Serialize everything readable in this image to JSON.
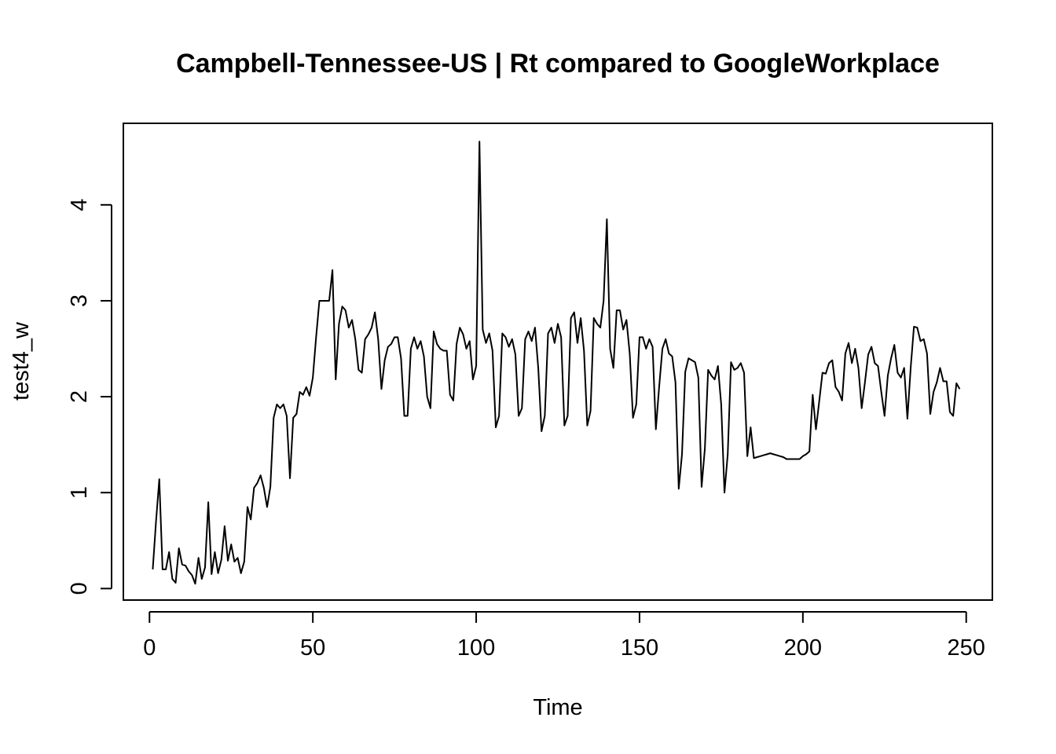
{
  "chart_data": {
    "type": "line",
    "title": "Campbell-Tennessee-US | Rt compared to GoogleWorkplace",
    "xlabel": "Time",
    "ylabel": "test4_w",
    "xlim": [
      -8,
      258
    ],
    "ylim": [
      -0.12,
      4.85
    ],
    "x_ticks": [
      "0",
      "50",
      "100",
      "150",
      "200",
      "250"
    ],
    "x_tick_values": [
      0,
      50,
      100,
      150,
      200,
      250
    ],
    "y_ticks": [
      "0",
      "1",
      "2",
      "3",
      "4"
    ],
    "y_tick_values": [
      0,
      1,
      2,
      3,
      4
    ],
    "grid": false,
    "legend": "none",
    "line_color": "#000000",
    "x_start": 1,
    "series": [
      {
        "values": [
          0.2,
          0.7,
          1.14,
          0.2,
          0.2,
          0.38,
          0.1,
          0.06,
          0.42,
          0.25,
          0.24,
          0.18,
          0.14,
          0.05,
          0.32,
          0.1,
          0.22,
          0.9,
          0.15,
          0.38,
          0.16,
          0.3,
          0.65,
          0.29,
          0.46,
          0.28,
          0.32,
          0.16,
          0.28,
          0.85,
          0.72,
          1.05,
          1.1,
          1.18,
          1.05,
          0.85,
          1.06,
          1.78,
          1.92,
          1.88,
          1.92,
          1.8,
          1.15,
          1.78,
          1.82,
          2.05,
          2.02,
          2.1,
          2.01,
          2.2,
          2.62,
          3.0,
          3.0,
          3.0,
          3.0,
          3.32,
          2.18,
          2.76,
          2.94,
          2.9,
          2.72,
          2.8,
          2.6,
          2.28,
          2.25,
          2.6,
          2.65,
          2.72,
          2.88,
          2.6,
          2.08,
          2.38,
          2.52,
          2.55,
          2.62,
          2.62,
          2.4,
          1.8,
          1.8,
          2.5,
          2.62,
          2.5,
          2.58,
          2.42,
          2.0,
          1.88,
          2.68,
          2.55,
          2.5,
          2.48,
          2.48,
          2.02,
          1.96,
          2.55,
          2.72,
          2.65,
          2.5,
          2.58,
          2.18,
          2.32,
          4.66,
          2.7,
          2.56,
          2.66,
          2.48,
          1.68,
          1.8,
          2.66,
          2.62,
          2.52,
          2.6,
          2.44,
          1.8,
          1.88,
          2.6,
          2.68,
          2.58,
          2.72,
          2.3,
          1.64,
          1.8,
          2.66,
          2.72,
          2.56,
          2.76,
          2.62,
          1.7,
          1.8,
          2.82,
          2.88,
          2.56,
          2.82,
          2.48,
          1.7,
          1.85,
          2.82,
          2.76,
          2.72,
          3.0,
          3.85,
          2.5,
          2.3,
          2.9,
          2.9,
          2.7,
          2.8,
          2.45,
          1.78,
          1.92,
          2.62,
          2.62,
          2.5,
          2.6,
          2.52,
          1.66,
          2.1,
          2.5,
          2.6,
          2.45,
          2.42,
          2.15,
          1.04,
          1.4,
          2.26,
          2.4,
          2.38,
          2.36,
          2.2,
          1.06,
          1.46,
          2.28,
          2.22,
          2.18,
          2.32,
          1.92,
          1.0,
          1.4,
          2.36,
          2.28,
          2.3,
          2.35,
          2.25,
          1.38,
          1.68,
          1.36,
          1.37,
          1.38,
          1.39,
          1.4,
          1.41,
          1.4,
          1.39,
          1.38,
          1.37,
          1.35,
          1.35,
          1.35,
          1.35,
          1.35,
          1.38,
          1.4,
          1.43,
          2.02,
          1.66,
          1.95,
          2.25,
          2.24,
          2.35,
          2.38,
          2.1,
          2.05,
          1.96,
          2.45,
          2.56,
          2.35,
          2.5,
          2.3,
          1.88,
          2.15,
          2.44,
          2.52,
          2.35,
          2.32,
          2.05,
          1.8,
          2.22,
          2.4,
          2.54,
          2.25,
          2.2,
          2.3,
          1.77,
          2.3,
          2.73,
          2.72,
          2.58,
          2.6,
          2.45,
          1.82,
          2.05,
          2.15,
          2.3,
          2.16,
          2.16,
          1.84,
          1.8,
          2.14,
          2.08
        ]
      }
    ]
  }
}
